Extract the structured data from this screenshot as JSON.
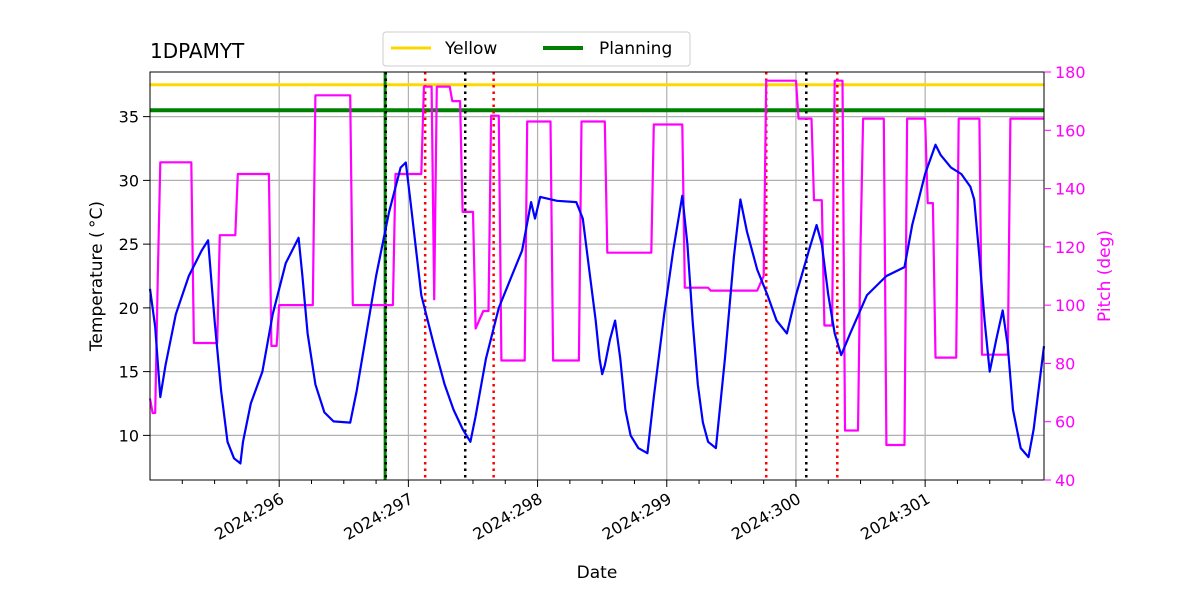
{
  "chart_data": {
    "type": "line",
    "title": "1DPAMYT",
    "xlabel": "Date",
    "ylabel": "Temperature ($^\\circ$C)",
    "ylabel_display": "Temperature ( °C)",
    "y2label": "Pitch (deg)",
    "xlim": [
      295.0,
      301.92
    ],
    "ylim": [
      6.5,
      38.5
    ],
    "y2lim": [
      40,
      180
    ],
    "xticks": [
      {
        "value": 296,
        "label": "2024:296"
      },
      {
        "value": 297,
        "label": "2024:297"
      },
      {
        "value": 298,
        "label": "2024:298"
      },
      {
        "value": 299,
        "label": "2024:299"
      },
      {
        "value": 300,
        "label": "2024:300"
      },
      {
        "value": 301,
        "label": "2024:301"
      }
    ],
    "yticks": [
      10,
      15,
      20,
      25,
      30,
      35
    ],
    "y2ticks": [
      40,
      60,
      80,
      100,
      120,
      140,
      160,
      180
    ],
    "grid": true,
    "legend": {
      "placement": "top-center",
      "entries": [
        {
          "name": "Yellow",
          "color": "#ffd700"
        },
        {
          "name": "Planning",
          "color": "#008000"
        }
      ]
    },
    "hlines": [
      {
        "name": "Yellow",
        "value": 37.5,
        "color": "#ffd700"
      },
      {
        "name": "Planning",
        "value": 35.5,
        "color": "#008000"
      }
    ],
    "vlines": [
      {
        "x": 296.82,
        "color": "#008000",
        "style": "solid"
      },
      {
        "x": 296.825,
        "color": "#000000",
        "style": "dotted"
      },
      {
        "x": 297.13,
        "color": "#ff0000",
        "style": "dotted"
      },
      {
        "x": 297.44,
        "color": "#000000",
        "style": "dotted"
      },
      {
        "x": 297.66,
        "color": "#ff0000",
        "style": "dotted"
      },
      {
        "x": 299.77,
        "color": "#ff0000",
        "style": "dotted"
      },
      {
        "x": 300.08,
        "color": "#000000",
        "style": "dotted"
      },
      {
        "x": 300.32,
        "color": "#ff0000",
        "style": "dotted"
      }
    ],
    "series": [
      {
        "name": "Temperature",
        "axis": "left",
        "color": "#0000ff",
        "points": [
          [
            295.0,
            21.5
          ],
          [
            295.04,
            18.5
          ],
          [
            295.08,
            13.0
          ],
          [
            295.12,
            15.5
          ],
          [
            295.2,
            19.5
          ],
          [
            295.3,
            22.5
          ],
          [
            295.4,
            24.5
          ],
          [
            295.45,
            25.3
          ],
          [
            295.5,
            19.0
          ],
          [
            295.55,
            13.5
          ],
          [
            295.6,
            9.5
          ],
          [
            295.65,
            8.2
          ],
          [
            295.7,
            7.8
          ],
          [
            295.72,
            9.5
          ],
          [
            295.78,
            12.5
          ],
          [
            295.87,
            15.0
          ],
          [
            295.95,
            19.5
          ],
          [
            296.05,
            23.5
          ],
          [
            296.15,
            25.5
          ],
          [
            296.18,
            22.5
          ],
          [
            296.22,
            18.0
          ],
          [
            296.28,
            14.0
          ],
          [
            296.35,
            11.8
          ],
          [
            296.42,
            11.1
          ],
          [
            296.55,
            11.0
          ],
          [
            296.6,
            13.5
          ],
          [
            296.75,
            22.5
          ],
          [
            296.85,
            27.5
          ],
          [
            296.94,
            31.0
          ],
          [
            296.98,
            31.4
          ],
          [
            297.02,
            28.0
          ],
          [
            297.1,
            21.0
          ],
          [
            297.2,
            17.0
          ],
          [
            297.28,
            14.0
          ],
          [
            297.35,
            12.0
          ],
          [
            297.42,
            10.5
          ],
          [
            297.48,
            9.5
          ],
          [
            297.52,
            11.5
          ],
          [
            297.6,
            16.0
          ],
          [
            297.7,
            20.0
          ],
          [
            297.8,
            22.5
          ],
          [
            297.88,
            24.5
          ],
          [
            297.95,
            28.3
          ],
          [
            297.98,
            27.0
          ],
          [
            298.02,
            28.7
          ],
          [
            298.15,
            28.4
          ],
          [
            298.3,
            28.3
          ],
          [
            298.35,
            27.0
          ],
          [
            298.4,
            23.0
          ],
          [
            298.45,
            19.0
          ],
          [
            298.48,
            16.0
          ],
          [
            298.5,
            14.8
          ],
          [
            298.52,
            15.5
          ],
          [
            298.56,
            17.5
          ],
          [
            298.6,
            19.0
          ],
          [
            298.64,
            16.0
          ],
          [
            298.68,
            12.0
          ],
          [
            298.72,
            10.0
          ],
          [
            298.78,
            9.0
          ],
          [
            298.85,
            8.6
          ],
          [
            298.9,
            13.0
          ],
          [
            298.98,
            19.5
          ],
          [
            299.05,
            24.5
          ],
          [
            299.12,
            28.8
          ],
          [
            299.16,
            25.0
          ],
          [
            299.2,
            19.0
          ],
          [
            299.24,
            14.0
          ],
          [
            299.28,
            11.0
          ],
          [
            299.32,
            9.5
          ],
          [
            299.38,
            9.0
          ],
          [
            299.45,
            16.0
          ],
          [
            299.52,
            24.0
          ],
          [
            299.57,
            28.5
          ],
          [
            299.62,
            26.0
          ],
          [
            299.7,
            23.0
          ],
          [
            299.78,
            21.0
          ],
          [
            299.85,
            19.0
          ],
          [
            299.93,
            18.0
          ],
          [
            300.0,
            21.0
          ],
          [
            300.1,
            24.5
          ],
          [
            300.16,
            26.5
          ],
          [
            300.2,
            25.0
          ],
          [
            300.25,
            21.0
          ],
          [
            300.3,
            18.0
          ],
          [
            300.35,
            16.3
          ],
          [
            300.42,
            18.0
          ],
          [
            300.55,
            21.0
          ],
          [
            300.7,
            22.5
          ],
          [
            300.84,
            23.2
          ],
          [
            300.9,
            26.5
          ],
          [
            301.0,
            30.5
          ],
          [
            301.08,
            32.8
          ],
          [
            301.12,
            32.0
          ],
          [
            301.2,
            31.0
          ],
          [
            301.28,
            30.5
          ],
          [
            301.35,
            29.5
          ],
          [
            301.38,
            28.5
          ],
          [
            301.42,
            24.0
          ],
          [
            301.46,
            19.0
          ],
          [
            301.5,
            15.0
          ],
          [
            301.55,
            17.5
          ],
          [
            301.6,
            19.8
          ],
          [
            301.64,
            17.0
          ],
          [
            301.68,
            12.0
          ],
          [
            301.74,
            9.0
          ],
          [
            301.8,
            8.3
          ],
          [
            301.84,
            10.5
          ],
          [
            301.92,
            17.0
          ]
        ]
      },
      {
        "name": "Pitch",
        "axis": "right",
        "color": "#ff00ff",
        "points": [
          [
            295.0,
            68
          ],
          [
            295.02,
            63
          ],
          [
            295.04,
            63
          ],
          [
            295.06,
            110
          ],
          [
            295.08,
            149
          ],
          [
            295.32,
            149
          ],
          [
            295.34,
            87
          ],
          [
            295.52,
            87
          ],
          [
            295.54,
            124
          ],
          [
            295.66,
            124
          ],
          [
            295.68,
            145
          ],
          [
            295.92,
            145
          ],
          [
            295.94,
            86
          ],
          [
            295.98,
            86
          ],
          [
            296.0,
            100
          ],
          [
            296.26,
            100
          ],
          [
            296.28,
            172
          ],
          [
            296.55,
            172
          ],
          [
            296.57,
            100
          ],
          [
            296.88,
            100
          ],
          [
            296.9,
            145
          ],
          [
            297.1,
            145
          ],
          [
            297.12,
            175
          ],
          [
            297.18,
            175
          ],
          [
            297.2,
            102
          ],
          [
            297.22,
            175
          ],
          [
            297.32,
            175
          ],
          [
            297.34,
            170
          ],
          [
            297.4,
            170
          ],
          [
            297.42,
            132
          ],
          [
            297.5,
            132
          ],
          [
            297.52,
            92
          ],
          [
            297.58,
            98
          ],
          [
            297.62,
            98
          ],
          [
            297.64,
            165
          ],
          [
            297.7,
            165
          ],
          [
            297.72,
            81
          ],
          [
            297.9,
            81
          ],
          [
            297.92,
            163
          ],
          [
            298.1,
            163
          ],
          [
            298.12,
            81
          ],
          [
            298.32,
            81
          ],
          [
            298.34,
            163
          ],
          [
            298.52,
            163
          ],
          [
            298.54,
            118
          ],
          [
            298.88,
            118
          ],
          [
            298.9,
            162
          ],
          [
            299.12,
            162
          ],
          [
            299.14,
            106
          ],
          [
            299.32,
            106
          ],
          [
            299.34,
            105
          ],
          [
            299.7,
            105
          ],
          [
            299.72,
            107
          ],
          [
            299.75,
            110
          ],
          [
            299.77,
            177
          ],
          [
            299.83,
            177
          ],
          [
            300.0,
            177
          ],
          [
            300.02,
            164
          ],
          [
            300.12,
            164
          ],
          [
            300.14,
            136
          ],
          [
            300.2,
            136
          ],
          [
            300.22,
            93
          ],
          [
            300.28,
            93
          ],
          [
            300.3,
            177
          ],
          [
            300.36,
            177
          ],
          [
            300.38,
            57
          ],
          [
            300.48,
            57
          ],
          [
            300.5,
            120
          ],
          [
            300.52,
            164
          ],
          [
            300.68,
            164
          ],
          [
            300.7,
            52
          ],
          [
            300.84,
            52
          ],
          [
            300.86,
            164
          ],
          [
            301.0,
            164
          ],
          [
            301.02,
            135
          ],
          [
            301.06,
            135
          ],
          [
            301.08,
            82
          ],
          [
            301.24,
            82
          ],
          [
            301.26,
            164
          ],
          [
            301.42,
            164
          ],
          [
            301.44,
            83
          ],
          [
            301.64,
            83
          ],
          [
            301.66,
            164
          ],
          [
            301.92,
            164
          ]
        ]
      }
    ]
  }
}
